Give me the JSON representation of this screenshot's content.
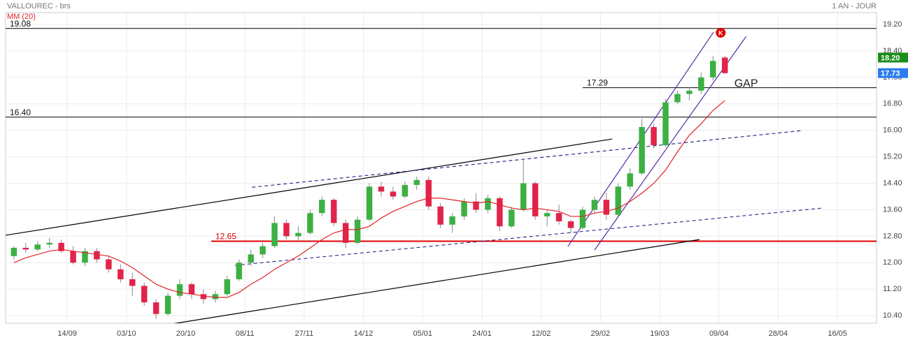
{
  "chart_data": {
    "type": "candlestick",
    "title": "VALLOUREC - brs",
    "period": "1 AN - JOUR",
    "xlim": [
      -10.4,
      136.6
    ],
    "xticks": [
      {
        "value": 0,
        "label": "14/09"
      },
      {
        "value": 10,
        "label": "03/10"
      },
      {
        "value": 20,
        "label": "20/10"
      },
      {
        "value": 30,
        "label": "08/11"
      },
      {
        "value": 40,
        "label": "27/11"
      },
      {
        "value": 50,
        "label": "14/12"
      },
      {
        "value": 60,
        "label": "05/01"
      },
      {
        "value": 70,
        "label": "24/01"
      },
      {
        "value": 80,
        "label": "12/02"
      },
      {
        "value": 90,
        "label": "29/02"
      },
      {
        "value": 100,
        "label": "19/03"
      },
      {
        "value": 110,
        "label": "09/04"
      },
      {
        "value": 120,
        "label": "28/04"
      },
      {
        "value": 130,
        "label": "16/05"
      }
    ],
    "ylim": [
      10.17,
      19.56
    ],
    "yticks": [
      {
        "value": 10.4,
        "label": "10.40"
      },
      {
        "value": 11.2,
        "label": "11.20"
      },
      {
        "value": 12,
        "label": "12.00"
      },
      {
        "value": 12.8,
        "label": "12.80"
      },
      {
        "value": 13.6,
        "label": "13.60"
      },
      {
        "value": 14.4,
        "label": "14.40"
      },
      {
        "value": 15.2,
        "label": "15.20"
      },
      {
        "value": 16,
        "label": "16.00"
      },
      {
        "value": 16.8,
        "label": "16.80"
      },
      {
        "value": 17.6,
        "label": "17.60"
      },
      {
        "value": 18.4,
        "label": "18.40"
      },
      {
        "value": 19.2,
        "label": "19.20"
      }
    ],
    "grid": true,
    "up_color": "#3cb043",
    "down_color": "#e2234a",
    "x": [
      -9,
      -7,
      -5,
      -3,
      -1,
      1,
      3,
      5,
      7,
      9,
      11,
      13,
      15,
      17,
      19,
      21,
      23,
      25,
      27,
      29,
      31,
      33,
      35,
      37,
      39,
      41,
      43,
      45,
      47,
      49,
      51,
      53,
      55,
      57,
      59,
      61,
      63,
      65,
      67,
      69,
      71,
      73,
      75,
      77,
      79,
      81,
      83,
      85,
      87,
      89,
      91,
      93,
      95,
      97,
      99,
      101,
      103,
      105,
      107,
      109,
      111
    ],
    "open": [
      12.2,
      12.45,
      12.4,
      12.55,
      12.6,
      12.35,
      12.0,
      12.35,
      12.1,
      11.8,
      11.5,
      11.3,
      10.8,
      10.45,
      11.0,
      11.35,
      11.05,
      10.9,
      11.05,
      11.5,
      12.0,
      12.25,
      12.5,
      13.2,
      12.8,
      12.9,
      13.5,
      13.9,
      13.2,
      12.6,
      13.3,
      14.3,
      14.15,
      14.0,
      14.35,
      14.5,
      13.7,
      13.15,
      13.4,
      13.85,
      13.6,
      13.95,
      13.1,
      13.6,
      14.4,
      13.4,
      13.5,
      13.25,
      13.05,
      13.6,
      13.9,
      13.45,
      14.3,
      14.7,
      16.1,
      15.55,
      16.85,
      17.1,
      17.2,
      17.6,
      18.2
    ],
    "high": [
      12.5,
      12.6,
      12.65,
      12.75,
      12.7,
      12.5,
      12.45,
      12.45,
      12.2,
      11.95,
      11.7,
      11.4,
      10.9,
      11.1,
      11.5,
      11.4,
      11.2,
      11.15,
      11.6,
      12.1,
      12.4,
      12.6,
      13.4,
      13.3,
      13.1,
      13.6,
      14.0,
      13.95,
      13.3,
      13.4,
      14.4,
      14.45,
      14.3,
      14.45,
      14.6,
      14.6,
      13.8,
      13.5,
      13.95,
      14.1,
      14.05,
      14.0,
      13.7,
      15.1,
      14.45,
      13.6,
      13.75,
      13.3,
      13.7,
      14.0,
      14.1,
      14.4,
      14.85,
      16.35,
      16.2,
      16.95,
      17.2,
      17.3,
      17.75,
      18.25,
      18.25
    ],
    "low": [
      12.1,
      12.3,
      12.35,
      12.45,
      12.3,
      11.95,
      11.9,
      12.0,
      11.7,
      11.4,
      11.0,
      10.7,
      10.3,
      10.4,
      10.9,
      10.9,
      10.75,
      10.8,
      11.0,
      11.45,
      11.9,
      12.15,
      12.45,
      12.7,
      12.65,
      12.85,
      13.4,
      13.1,
      12.45,
      12.55,
      13.25,
      14.0,
      13.9,
      13.95,
      14.2,
      13.6,
      13.05,
      12.9,
      13.3,
      13.5,
      13.5,
      12.95,
      13.05,
      13.55,
      13.3,
      13.1,
      13.15,
      12.9,
      13.0,
      13.5,
      13.3,
      13.4,
      14.2,
      14.65,
      15.45,
      15.5,
      16.8,
      16.9,
      17.1,
      17.5,
      17.7
    ],
    "close": [
      12.45,
      12.4,
      12.55,
      12.6,
      12.35,
      12.0,
      12.35,
      12.1,
      11.8,
      11.5,
      11.3,
      10.8,
      10.45,
      11.0,
      11.35,
      11.05,
      10.9,
      11.05,
      11.5,
      12.0,
      12.25,
      12.5,
      13.2,
      12.8,
      12.9,
      13.5,
      13.9,
      13.2,
      12.6,
      13.3,
      14.3,
      14.15,
      14.0,
      14.35,
      14.5,
      13.7,
      13.15,
      13.4,
      13.85,
      13.6,
      13.95,
      13.1,
      13.6,
      14.4,
      13.4,
      13.5,
      13.25,
      13.05,
      13.6,
      13.9,
      13.45,
      14.3,
      14.7,
      16.1,
      15.55,
      16.85,
      17.1,
      17.2,
      17.6,
      18.1,
      17.73
    ],
    "moving_average": {
      "name": "MM (20)",
      "color": "#e2232a",
      "values": [
        12.0,
        12.15,
        12.25,
        12.35,
        12.4,
        12.35,
        12.3,
        12.25,
        12.2,
        12.05,
        11.85,
        11.6,
        11.35,
        11.2,
        11.1,
        11.05,
        11.0,
        10.95,
        10.95,
        11.1,
        11.35,
        11.55,
        11.8,
        12.0,
        12.2,
        12.45,
        12.7,
        12.9,
        13.0,
        13.0,
        13.1,
        13.35,
        13.55,
        13.7,
        13.85,
        13.95,
        13.95,
        13.9,
        13.85,
        13.8,
        13.85,
        13.75,
        13.65,
        13.6,
        13.65,
        13.6,
        13.55,
        13.4,
        13.4,
        13.5,
        13.55,
        13.65,
        13.85,
        14.1,
        14.4,
        14.8,
        15.35,
        15.85,
        16.2,
        16.6,
        16.9
      ]
    },
    "levels": [
      {
        "value": 19.08,
        "label": "19.08",
        "color": "#000000",
        "from": -10.4
      },
      {
        "value": 16.4,
        "label": "16.40",
        "color": "#000000",
        "from": -10.4
      },
      {
        "value": 17.29,
        "label": "17.29",
        "color": "#000000",
        "from": 87.0
      },
      {
        "value": 12.65,
        "label": "12.65",
        "color": "#e00000",
        "from": 24.3
      }
    ],
    "trendlines": [
      {
        "x": [
          -10.4,
          92.0
        ],
        "y": [
          12.83,
          15.74
        ],
        "color": "#000000",
        "dashed": false
      },
      {
        "x": [
          17.0,
          106.7
        ],
        "y": [
          10.13,
          12.7
        ],
        "color": "#000000",
        "dashed": false
      },
      {
        "x": [
          31.2,
          123.8
        ],
        "y": [
          14.28,
          15.99
        ],
        "color": "#2b2b8c",
        "dashed": true
      },
      {
        "x": [
          28.3,
          127.4
        ],
        "y": [
          11.92,
          13.65
        ],
        "color": "#2b2b8c",
        "dashed": true
      },
      {
        "x": [
          84.5,
          109.1
        ],
        "y": [
          12.49,
          18.97
        ],
        "color": "#5a2ca0",
        "dashed": false
      },
      {
        "x": [
          89.0,
          114.6
        ],
        "y": [
          12.38,
          18.84
        ],
        "color": "#5a2ca0",
        "dashed": false
      }
    ],
    "annotations": [
      {
        "text": "GAP",
        "x": 112.6,
        "y": 17.4
      }
    ],
    "marker": {
      "text": "K",
      "x": 110.3,
      "y": 18.95,
      "color": "#e00000"
    },
    "price_tags": [
      {
        "value": 18.2,
        "label": "18.20",
        "color": "#1a8f1a"
      },
      {
        "value": 17.73,
        "label": "17.73",
        "color": "#2b7cf0"
      }
    ]
  }
}
